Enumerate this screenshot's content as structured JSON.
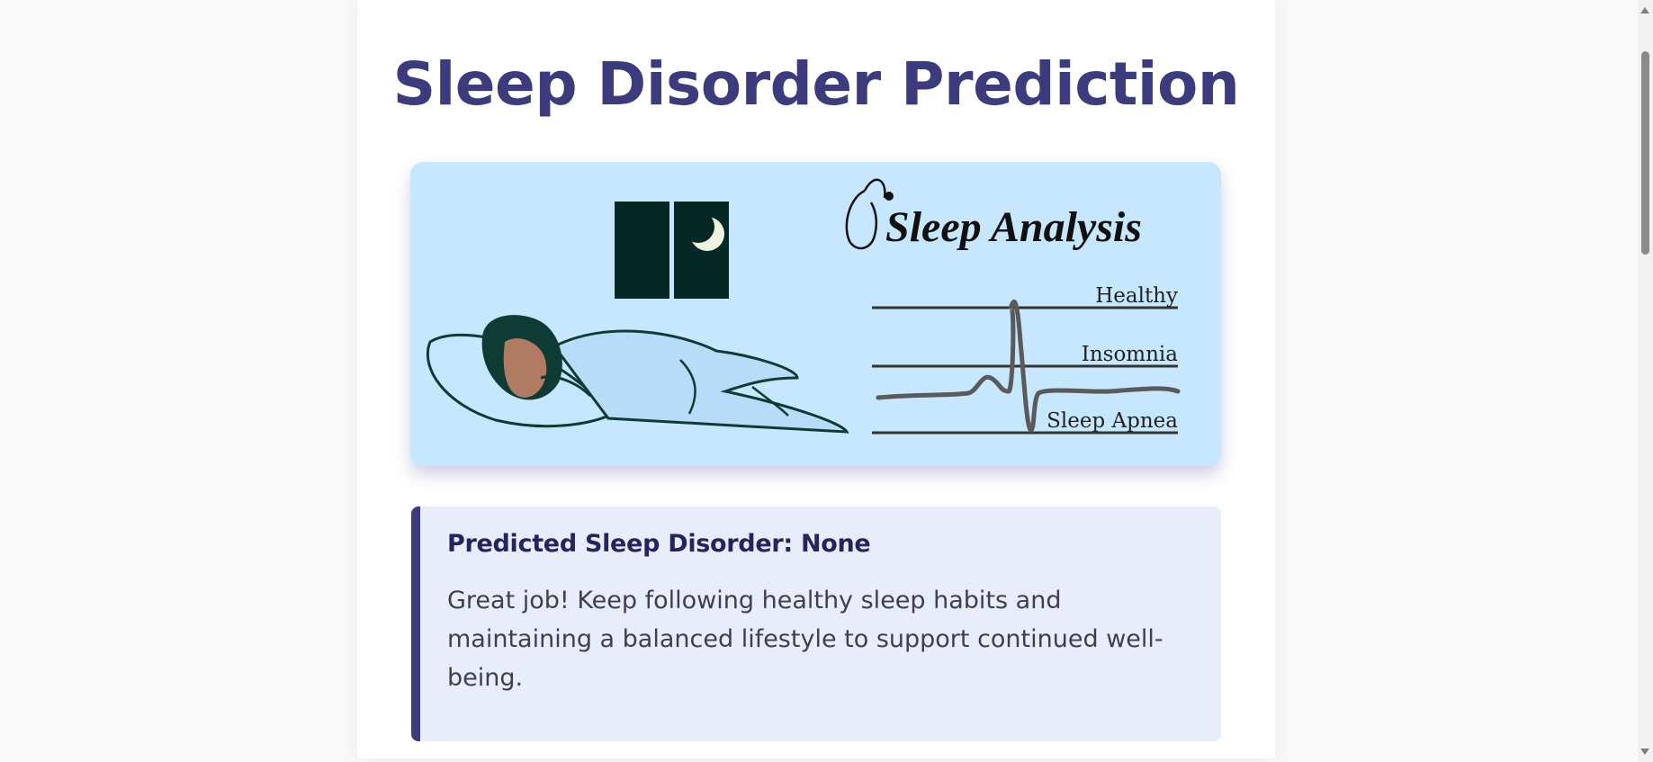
{
  "page": {
    "title": "Sleep Disorder Prediction"
  },
  "banner": {
    "heading": "Sleep Analysis",
    "labels": [
      "Healthy",
      "Insomnia",
      "Sleep Apnea"
    ]
  },
  "result": {
    "title": "Predicted Sleep Disorder: None",
    "message": "Great job! Keep following healthy sleep habits and maintaining a balanced lifestyle to support continued well-being."
  },
  "colors": {
    "accent": "#3b3b7e",
    "banner_bg": "#c6e7fd",
    "result_bg": "#e8edf9"
  }
}
